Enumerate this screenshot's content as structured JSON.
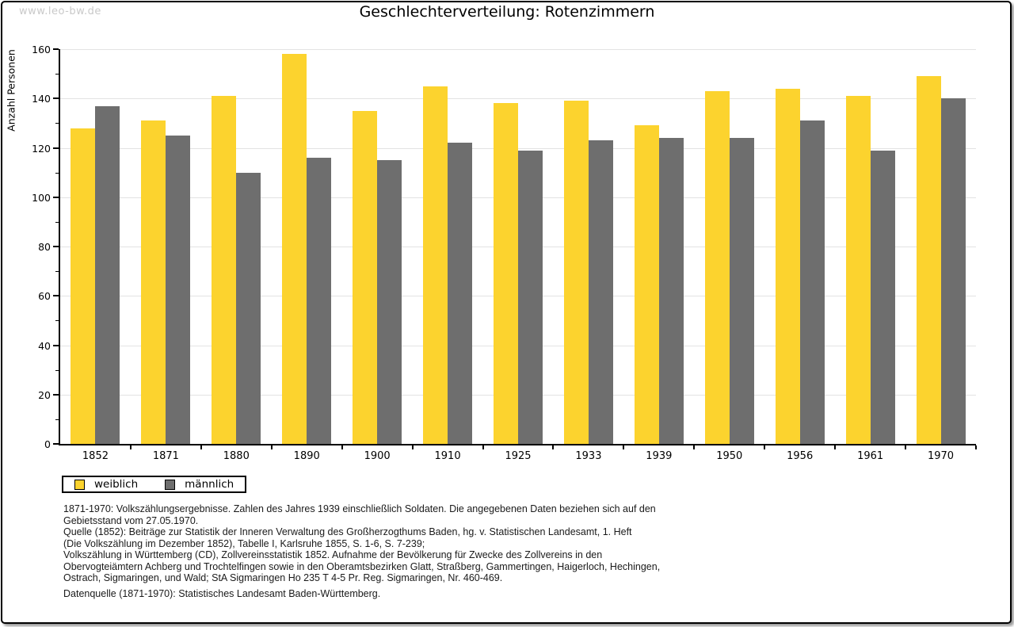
{
  "watermark": "www.leo-bw.de",
  "title": "Geschlechterverteilung: Rotenzimmern",
  "chart_data": {
    "type": "bar",
    "title": "Geschlechterverteilung: Rotenzimmern",
    "xlabel": "",
    "ylabel": "Anzahl Personen",
    "ylim": [
      0,
      160
    ],
    "ytick_step": 20,
    "yminor_step": 10,
    "grid": true,
    "legend_position": "bottom-left",
    "categories": [
      "1852",
      "1871",
      "1880",
      "1890",
      "1900",
      "1910",
      "1925",
      "1933",
      "1939",
      "1950",
      "1956",
      "1961",
      "1970"
    ],
    "series": [
      {
        "name": "weiblich",
        "color": "#FCD32E",
        "values": [
          128,
          131,
          141,
          158,
          135,
          145,
          138,
          139,
          129,
          143,
          144,
          141,
          149
        ]
      },
      {
        "name": "männlich",
        "color": "#6E6E6E",
        "values": [
          137,
          125,
          110,
          116,
          115,
          122,
          119,
          123,
          124,
          124,
          131,
          119,
          140
        ]
      }
    ]
  },
  "legend": {
    "items": [
      {
        "label": "weiblich",
        "color": "#FCD32E"
      },
      {
        "label": "männlich",
        "color": "#6E6E6E"
      }
    ]
  },
  "footnotes": {
    "lines": [
      "1871-1970: Volkszählungsergebnisse. Zahlen des Jahres 1939 einschließlich Soldaten. Die angegebenen Daten beziehen sich auf den",
      "Gebietsstand vom 27.05.1970.",
      "Quelle (1852): Beiträge zur Statistik der Inneren Verwaltung des Großherzogthums Baden, hg. v. Statistischen Landesamt, 1. Heft",
      "(Die Volkszählung im Dezember 1852), Tabelle I, Karlsruhe 1855, S. 1-6, S. 7-239;",
      "Volkszählung in Württemberg (CD), Zollvereinsstatistik 1852. Aufnahme der Bevölkerung für Zwecke des Zollvereins in den",
      "Obervogteiämtern Achberg und Trochtelfingen sowie in den Oberamtsbezirken Glatt, Straßberg, Gammertingen, Haigerloch, Hechingen,",
      "Ostrach, Sigmaringen, und Wald; StA Sigmaringen Ho 235 T 4-5 Pr. Reg. Sigmaringen, Nr. 460-469."
    ],
    "datasource": "Datenquelle (1871-1970): Statistisches Landesamt Baden-Württemberg."
  },
  "colors": {
    "weiblich": "#FCD32E",
    "männlich": "#6E6E6E",
    "gridline": "#e3e3e3",
    "axis": "#000000",
    "watermark": "#c9c9c9",
    "frame_border": "#000000"
  }
}
